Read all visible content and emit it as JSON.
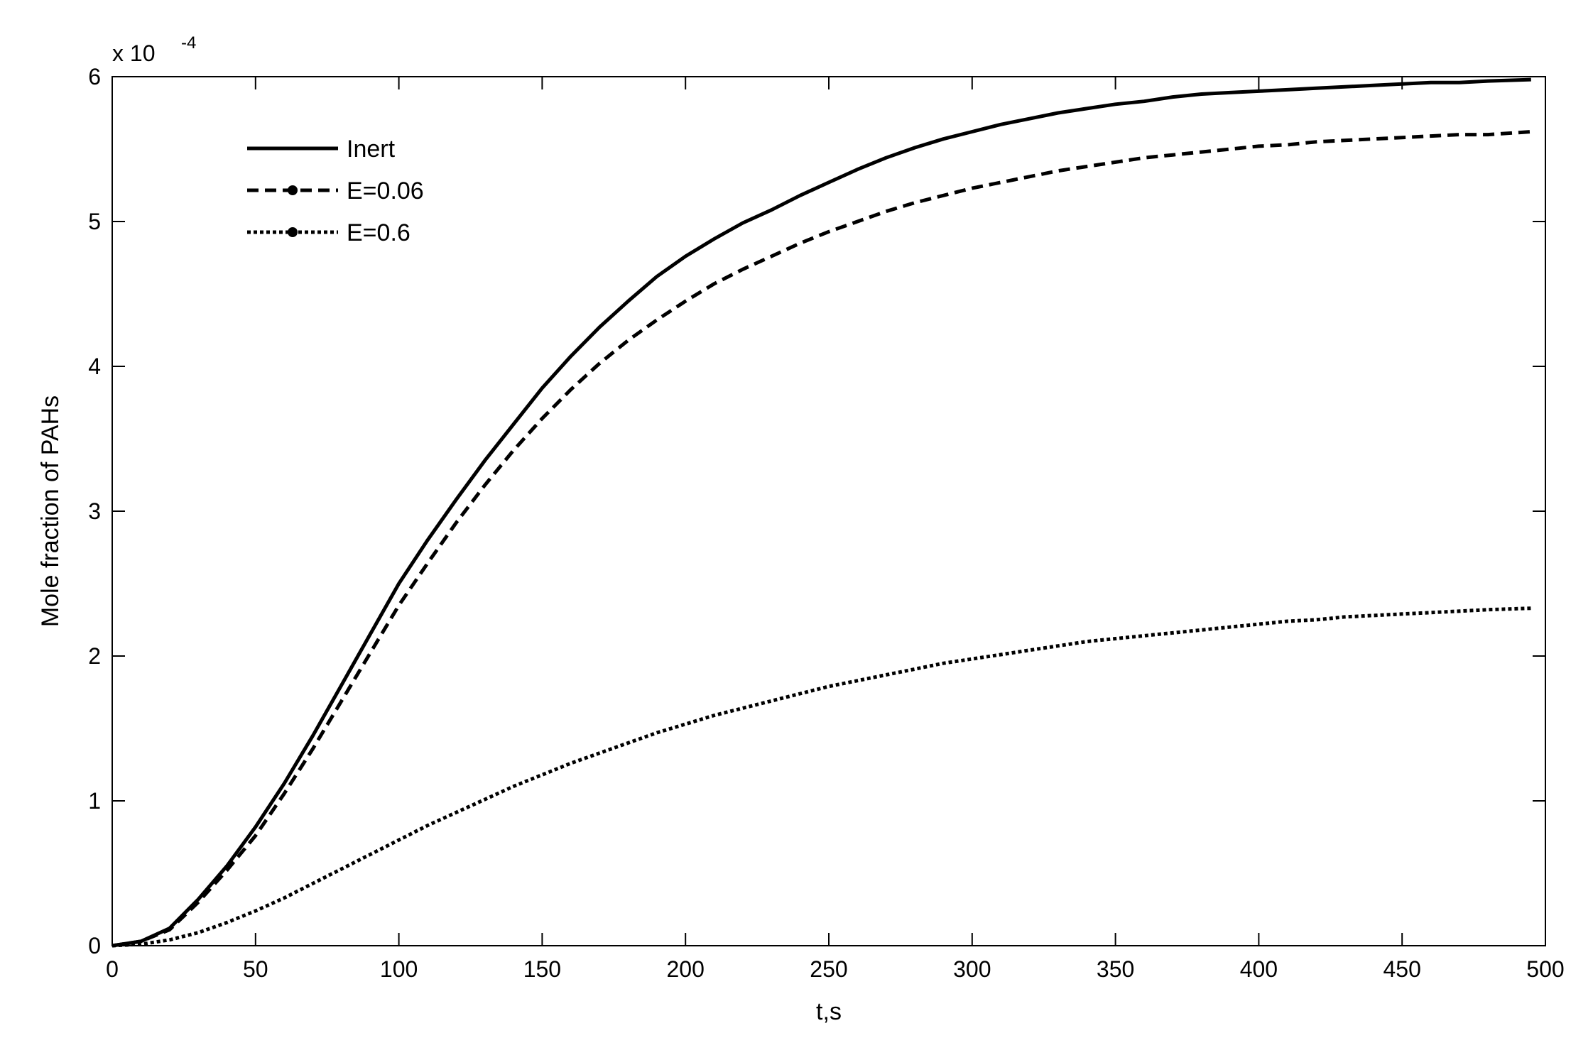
{
  "chart_data": {
    "type": "line",
    "title": "",
    "xlabel": "t,s",
    "ylabel": "Mole fraction of PAHs",
    "xlim": [
      0,
      500
    ],
    "ylim": [
      0,
      6
    ],
    "y_multiplier": {
      "base": "x 10",
      "exponent": "-4"
    },
    "x_ticks": [
      0,
      50,
      100,
      150,
      200,
      250,
      300,
      350,
      400,
      450,
      500
    ],
    "x_tick_labels": [
      "0",
      "50",
      "100",
      "150",
      "200",
      "250",
      "300",
      "350",
      "400",
      "450",
      "500"
    ],
    "y_ticks": [
      0,
      1,
      2,
      3,
      4,
      5,
      6
    ],
    "y_tick_labels": [
      "0",
      "1",
      "2",
      "3",
      "4",
      "5",
      "6"
    ],
    "grid": false,
    "legend_position": "top-left",
    "series": [
      {
        "name": "Inert",
        "style": "solid",
        "color": "#000000",
        "x": [
          0,
          10,
          20,
          30,
          40,
          50,
          60,
          70,
          80,
          90,
          100,
          110,
          120,
          130,
          140,
          150,
          160,
          170,
          180,
          190,
          200,
          210,
          220,
          230,
          240,
          250,
          260,
          270,
          280,
          290,
          300,
          310,
          320,
          330,
          340,
          350,
          360,
          370,
          380,
          390,
          400,
          410,
          420,
          430,
          440,
          450,
          460,
          470,
          480,
          495
        ],
        "y": [
          0,
          0.03,
          0.12,
          0.32,
          0.55,
          0.82,
          1.12,
          1.45,
          1.8,
          2.15,
          2.5,
          2.8,
          3.08,
          3.35,
          3.6,
          3.85,
          4.07,
          4.27,
          4.45,
          4.62,
          4.76,
          4.88,
          4.99,
          5.08,
          5.18,
          5.27,
          5.36,
          5.44,
          5.51,
          5.57,
          5.62,
          5.67,
          5.71,
          5.75,
          5.78,
          5.81,
          5.83,
          5.86,
          5.88,
          5.89,
          5.9,
          5.91,
          5.92,
          5.93,
          5.94,
          5.95,
          5.96,
          5.96,
          5.97,
          5.98
        ]
      },
      {
        "name": "E=0.06",
        "style": "dashed",
        "color": "#000000",
        "x": [
          0,
          10,
          20,
          30,
          40,
          50,
          60,
          70,
          80,
          90,
          100,
          110,
          120,
          130,
          140,
          150,
          160,
          170,
          180,
          190,
          200,
          210,
          220,
          230,
          240,
          250,
          260,
          270,
          280,
          290,
          300,
          310,
          320,
          330,
          340,
          350,
          360,
          370,
          380,
          390,
          400,
          410,
          420,
          430,
          440,
          450,
          460,
          470,
          480,
          495
        ],
        "y": [
          0,
          0.03,
          0.11,
          0.3,
          0.52,
          0.76,
          1.05,
          1.36,
          1.69,
          2.02,
          2.35,
          2.64,
          2.92,
          3.18,
          3.42,
          3.64,
          3.84,
          4.02,
          4.18,
          4.32,
          4.45,
          4.57,
          4.67,
          4.76,
          4.85,
          4.93,
          5.0,
          5.07,
          5.13,
          5.18,
          5.23,
          5.27,
          5.31,
          5.35,
          5.38,
          5.41,
          5.44,
          5.46,
          5.48,
          5.5,
          5.52,
          5.53,
          5.55,
          5.56,
          5.57,
          5.58,
          5.59,
          5.6,
          5.6,
          5.62
        ]
      },
      {
        "name": "E=0.6",
        "style": "dotted",
        "color": "#000000",
        "x": [
          0,
          10,
          20,
          30,
          40,
          50,
          60,
          70,
          80,
          90,
          100,
          110,
          120,
          130,
          140,
          150,
          160,
          170,
          180,
          190,
          200,
          210,
          220,
          230,
          240,
          250,
          260,
          270,
          280,
          290,
          300,
          310,
          320,
          330,
          340,
          350,
          360,
          370,
          380,
          390,
          400,
          410,
          420,
          430,
          440,
          450,
          460,
          470,
          480,
          495
        ],
        "y": [
          0,
          0.01,
          0.04,
          0.09,
          0.16,
          0.24,
          0.33,
          0.43,
          0.53,
          0.63,
          0.73,
          0.83,
          0.92,
          1.01,
          1.1,
          1.18,
          1.26,
          1.33,
          1.4,
          1.47,
          1.53,
          1.59,
          1.64,
          1.69,
          1.74,
          1.79,
          1.83,
          1.87,
          1.91,
          1.95,
          1.98,
          2.01,
          2.04,
          2.07,
          2.1,
          2.12,
          2.14,
          2.16,
          2.18,
          2.2,
          2.22,
          2.24,
          2.25,
          2.27,
          2.28,
          2.29,
          2.3,
          2.31,
          2.32,
          2.33
        ]
      }
    ]
  }
}
